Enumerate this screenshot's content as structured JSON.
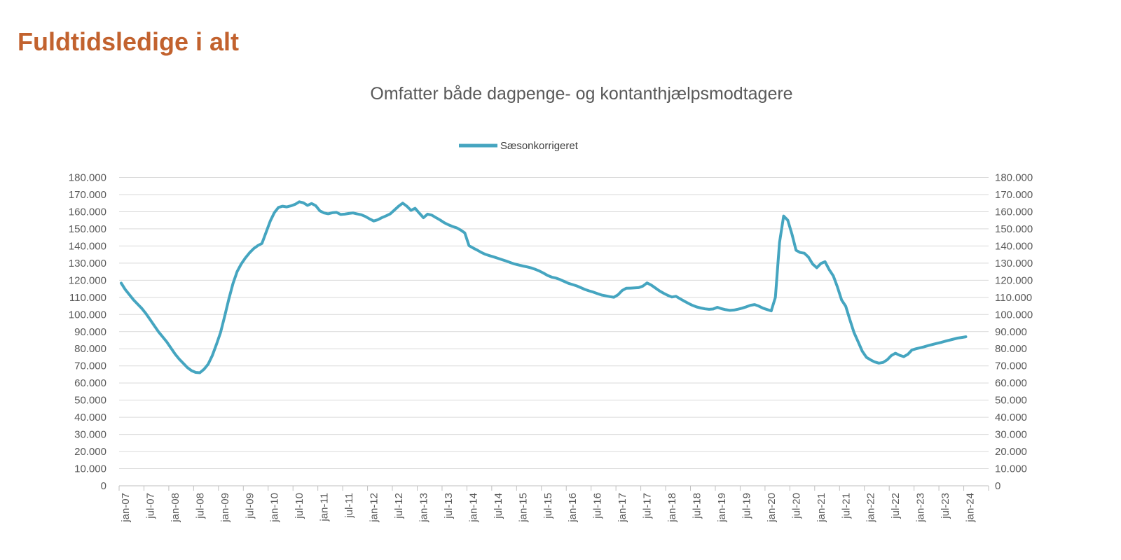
{
  "title": "Fuldtidsledige i alt",
  "colors": {
    "title": "#C2622E",
    "line": "#45A5C0",
    "grid": "#D9D9D9",
    "axis": "#BFBFBF",
    "tick_text": "#595959",
    "subtitle_text": "#595959",
    "legend_text": "#404040"
  },
  "chart_data": {
    "type": "line",
    "title": "Omfatter både dagpenge- og kontanthjælpsmodtagere",
    "xlabel": "",
    "ylabel": "",
    "grid": "horizontal",
    "legend_position": "top",
    "dual_y_axis": true,
    "ylim": [
      0,
      180000
    ],
    "y_ticks": [
      0,
      10000,
      20000,
      30000,
      40000,
      50000,
      60000,
      70000,
      80000,
      90000,
      100000,
      110000,
      120000,
      130000,
      140000,
      150000,
      160000,
      170000,
      180000
    ],
    "y_tick_labels": [
      "0",
      "10.000",
      "20.000",
      "30.000",
      "40.000",
      "50.000",
      "60.000",
      "70.000",
      "80.000",
      "90.000",
      "100.000",
      "110.000",
      "120.000",
      "130.000",
      "140.000",
      "150.000",
      "160.000",
      "170.000",
      "180.000"
    ],
    "x_tick_interval_months": 6,
    "x_tick_labels": [
      "jan-07",
      "jul-07",
      "jan-08",
      "jul-08",
      "jan-09",
      "jul-09",
      "jan-10",
      "jul-10",
      "jan-11",
      "jul-11",
      "jan-12",
      "jul-12",
      "jan-13",
      "jul-13",
      "jan-14",
      "jul-14",
      "jan-15",
      "jul-15",
      "jan-16",
      "jul-16",
      "jan-17",
      "jul-17",
      "jan-18",
      "jul-18",
      "jan-19",
      "jul-19",
      "jan-20",
      "jul-20",
      "jan-21",
      "jul-21",
      "jan-22",
      "jul-22",
      "jan-23",
      "jul-23",
      "jan-24"
    ],
    "series": [
      {
        "name": "Sæsonkorrigeret",
        "color": "#45A5C0",
        "start": "jan-07",
        "frequency": "monthly",
        "values": [
          118300,
          114500,
          111500,
          108500,
          106000,
          103500,
          100500,
          97000,
          93500,
          90000,
          87000,
          84000,
          80500,
          77000,
          74000,
          71500,
          69000,
          67200,
          66200,
          66000,
          68000,
          71000,
          76000,
          82500,
          89500,
          99000,
          109000,
          118000,
          125000,
          129500,
          133000,
          136000,
          138500,
          140200,
          141500,
          148000,
          154500,
          159500,
          162500,
          163200,
          162800,
          163400,
          164300,
          165800,
          165200,
          163700,
          164800,
          163500,
          160500,
          159300,
          158800,
          159400,
          159600,
          158400,
          158600,
          159000,
          159300,
          158700,
          158200,
          157200,
          155800,
          154600,
          155300,
          156600,
          157600,
          158800,
          161000,
          163200,
          165000,
          163200,
          160800,
          162000,
          159200,
          156500,
          158600,
          158000,
          156600,
          155200,
          153600,
          152400,
          151400,
          150600,
          149300,
          147600,
          140200,
          138800,
          137600,
          136200,
          135100,
          134300,
          133600,
          132800,
          132000,
          131200,
          130300,
          129500,
          128900,
          128300,
          127800,
          127200,
          126400,
          125400,
          124200,
          122800,
          121800,
          121300,
          120400,
          119300,
          118200,
          117500,
          116700,
          115700,
          114600,
          113800,
          113100,
          112200,
          111400,
          110900,
          110400,
          110100,
          111500,
          114000,
          115300,
          115400,
          115500,
          115700,
          116600,
          118400,
          117200,
          115500,
          113800,
          112400,
          111200,
          110200,
          110600,
          109200,
          107800,
          106500,
          105300,
          104400,
          103800,
          103300,
          103000,
          103200,
          104200,
          103400,
          102800,
          102400,
          102600,
          103100,
          103700,
          104500,
          105400,
          105800,
          104900,
          103700,
          102900,
          102100,
          110000,
          142000,
          157500,
          155000,
          147000,
          137500,
          136200,
          135800,
          133500,
          129500,
          127300,
          129800,
          130800,
          126200,
          122500,
          116000,
          108500,
          104800,
          97000,
          89500,
          84000,
          78500,
          75000,
          73500,
          72300,
          71600,
          72000,
          73500,
          76000,
          77400,
          76200,
          75400,
          76800,
          79300,
          80000,
          80600,
          81200,
          81900,
          82500,
          83100,
          83700,
          84400,
          85000,
          85600,
          86200,
          86600,
          87000
        ]
      }
    ]
  }
}
